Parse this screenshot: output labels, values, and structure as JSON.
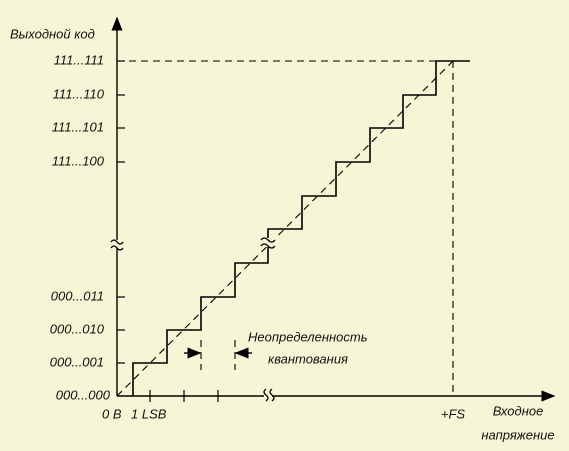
{
  "y_axis": {
    "label": "Выходной код",
    "codes": [
      "111...111",
      "111...110",
      "111...101",
      "111...100",
      "000...011",
      "000...010",
      "000...001",
      "000...000"
    ]
  },
  "x_axis": {
    "label_line1": "Входное",
    "label_line2": "напряжение",
    "origin": "0 В",
    "lsb": "1 LSB",
    "full_scale": "+FS"
  },
  "annotation": {
    "line1": "Неопределенность",
    "line2": "квантования"
  }
}
